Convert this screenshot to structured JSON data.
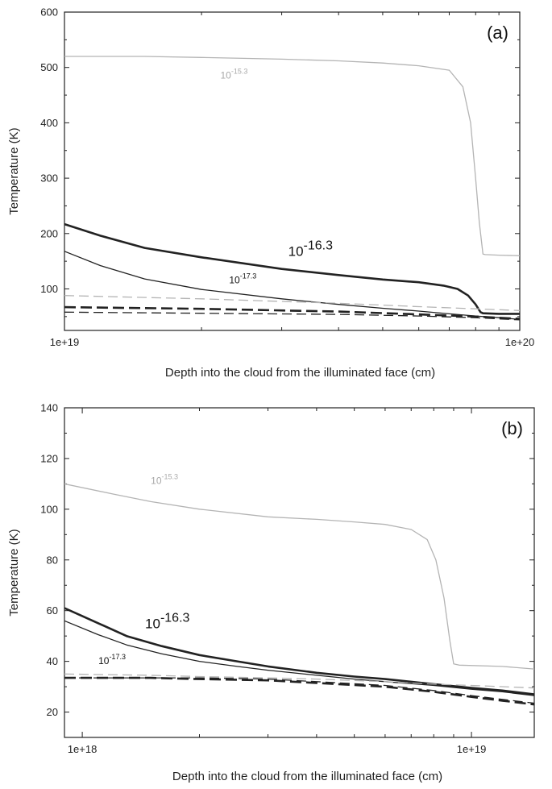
{
  "chart_data": [
    {
      "type": "line",
      "panel_label": "(a)",
      "xlabel": "Depth into the cloud from the illuminated face (cm)",
      "ylabel": "Temperature (K)",
      "xscale": "log",
      "xlim": [
        1e+19,
        1e+20
      ],
      "ylim": [
        25,
        600
      ],
      "x_tick_labels": [
        "1e+19",
        "1e+20"
      ],
      "y_ticks": [
        100,
        200,
        300,
        400,
        500,
        600
      ],
      "grid": false,
      "series": [
        {
          "name": "10^-15.3 solid",
          "color": "#b4b4b4",
          "style": "solid",
          "width": "thin",
          "x": [
            1e+19,
            1.5e+19,
            2e+19,
            3e+19,
            4e+19,
            5e+19,
            6e+19,
            7e+19,
            7.5e+19,
            7.8e+19,
            8e+19,
            8.15e+19,
            8.3e+19,
            8.4e+19,
            9e+19,
            1e+20
          ],
          "y": [
            520,
            520,
            518,
            515,
            512,
            508,
            503,
            495,
            465,
            400,
            300,
            220,
            163,
            162,
            161,
            160
          ]
        },
        {
          "name": "10^-16.3 solid",
          "color": "#222222",
          "style": "solid",
          "width": "thick",
          "x": [
            1e+19,
            1.2e+19,
            1.5e+19,
            2e+19,
            3e+19,
            4e+19,
            5e+19,
            6e+19,
            6.8e+19,
            7.3e+19,
            7.7e+19,
            8e+19,
            8.2e+19,
            8.3e+19,
            9e+19,
            1e+20
          ],
          "y": [
            217,
            196,
            174,
            157,
            136,
            125,
            117,
            112,
            106,
            100,
            88,
            72,
            58,
            56,
            55,
            55
          ]
        },
        {
          "name": "10^-17.3 solid",
          "color": "#222222",
          "style": "solid",
          "width": "thin",
          "x": [
            1e+19,
            1.2e+19,
            1.5e+19,
            2e+19,
            3e+19,
            4e+19,
            5e+19,
            6e+19,
            7e+19,
            8e+19,
            9e+19,
            1e+20
          ],
          "y": [
            168,
            142,
            118,
            99,
            82,
            72,
            65,
            60,
            55,
            51,
            48,
            45
          ]
        },
        {
          "name": "10^-15.3 dashed",
          "color": "#b4b4b4",
          "style": "dashed",
          "width": "thin",
          "x": [
            1e+19,
            2e+19,
            4e+19,
            6e+19,
            8e+19,
            1e+20
          ],
          "y": [
            88,
            82,
            74,
            68,
            64,
            61
          ]
        },
        {
          "name": "10^-16.3 dashed",
          "color": "#222222",
          "style": "dashed",
          "width": "thick",
          "x": [
            1e+19,
            2e+19,
            4e+19,
            6e+19,
            8e+19,
            1e+20
          ],
          "y": [
            67,
            64,
            59,
            54,
            50,
            46
          ]
        },
        {
          "name": "10^-17.3 dashed",
          "color": "#222222",
          "style": "dashed",
          "width": "thin",
          "x": [
            1e+19,
            2e+19,
            4e+19,
            6e+19,
            8e+19,
            1e+20
          ],
          "y": [
            58,
            56,
            54,
            51,
            48,
            44
          ]
        }
      ],
      "annotations": [
        {
          "base": "10",
          "exp": "-15.3",
          "x": 2.2e+19,
          "y": 480,
          "color": "#a8a8a8",
          "size": "small"
        },
        {
          "base": "10",
          "exp": "-16.3",
          "x": 3.1e+19,
          "y": 160,
          "color": "#111111",
          "size": "large"
        },
        {
          "base": "10",
          "exp": "-17.3",
          "x": 2.3e+19,
          "y": 110,
          "color": "#111111",
          "size": "small"
        }
      ]
    },
    {
      "type": "line",
      "panel_label": "(b)",
      "xlabel": "Depth into the cloud from the illuminated face (cm)",
      "ylabel": "Temperature (K)",
      "xscale": "log",
      "xlim": [
        9e+17,
        1.45e+19
      ],
      "ylim": [
        10,
        140
      ],
      "x_tick_labels": [
        "1e+18",
        "1e+19"
      ],
      "y_ticks": [
        20,
        40,
        60,
        80,
        100,
        120,
        140
      ],
      "grid": false,
      "series": [
        {
          "name": "10^-15.3 solid",
          "color": "#b4b4b4",
          "style": "solid",
          "width": "thin",
          "x": [
            9e+17,
            1.2e+18,
            1.5e+18,
            2e+18,
            3e+18,
            4e+18,
            5e+18,
            6e+18,
            7e+18,
            7.7e+18,
            8.1e+18,
            8.5e+18,
            8.8e+18,
            9e+18,
            9.3e+18,
            1.2e+19,
            1.45e+19
          ],
          "y": [
            110,
            106,
            103,
            100,
            97,
            96,
            95,
            94,
            92,
            88,
            80,
            65,
            48,
            39,
            38.5,
            38,
            37
          ]
        },
        {
          "name": "10^-16.3 solid",
          "color": "#222222",
          "style": "solid",
          "width": "thick",
          "x": [
            9e+17,
            1.1e+18,
            1.3e+18,
            1.6e+18,
            2e+18,
            2.5e+18,
            3e+18,
            4e+18,
            5e+18,
            6e+18,
            8e+18,
            1e+19,
            1.2e+19,
            1.45e+19
          ],
          "y": [
            61,
            55,
            50,
            46,
            42.5,
            40,
            38,
            35.5,
            34,
            33,
            31,
            29.5,
            28.5,
            27
          ]
        },
        {
          "name": "10^-17.3 solid",
          "color": "#222222",
          "style": "solid",
          "width": "thin",
          "x": [
            9e+17,
            1.1e+18,
            1.3e+18,
            1.6e+18,
            2e+18,
            2.5e+18,
            3e+18,
            4e+18,
            5e+18,
            6e+18,
            8e+18,
            1e+19,
            1.2e+19,
            1.45e+19
          ],
          "y": [
            56,
            50.5,
            46.5,
            43,
            40,
            38,
            36.5,
            34.5,
            33,
            32,
            30.5,
            29,
            28,
            26.5
          ]
        },
        {
          "name": "10^-15.3 dashed",
          "color": "#b4b4b4",
          "style": "dashed",
          "width": "thin",
          "x": [
            9e+17,
            1.5e+18,
            2e+18,
            3e+18,
            4e+18,
            6e+18,
            8e+18,
            1e+19,
            1.45e+19
          ],
          "y": [
            35,
            34.5,
            34,
            33.5,
            33,
            32,
            31,
            30.5,
            29.5
          ]
        },
        {
          "name": "10^-16.3 dashed",
          "color": "#222222",
          "style": "dashed",
          "width": "thick",
          "x": [
            9e+17,
            1.5e+18,
            2e+18,
            3e+18,
            4e+18,
            6e+18,
            8e+18,
            1e+19,
            1.2e+19,
            1.45e+19
          ],
          "y": [
            33.5,
            33.5,
            33,
            32.5,
            31.5,
            30,
            28,
            26,
            24.5,
            23
          ]
        },
        {
          "name": "10^-17.3 dashed",
          "color": "#222222",
          "style": "dashed",
          "width": "thin",
          "x": [
            9e+17,
            1.5e+18,
            2e+18,
            3e+18,
            4e+18,
            6e+18,
            8e+18,
            1e+19,
            1.2e+19,
            1.45e+19
          ],
          "y": [
            33.5,
            33.5,
            33.5,
            33,
            32,
            30.5,
            28.5,
            26.5,
            25,
            23.5
          ]
        }
      ],
      "annotations": [
        {
          "base": "10",
          "exp": "-15.3",
          "x": 1.5e+18,
          "y": 110,
          "color": "#a8a8a8",
          "size": "small"
        },
        {
          "base": "10",
          "exp": "-16.3",
          "x": 1.45e+18,
          "y": 53,
          "color": "#111111",
          "size": "large"
        },
        {
          "base": "10",
          "exp": "-17.3",
          "x": 1.1e+18,
          "y": 39,
          "color": "#111111",
          "size": "small"
        }
      ]
    }
  ]
}
